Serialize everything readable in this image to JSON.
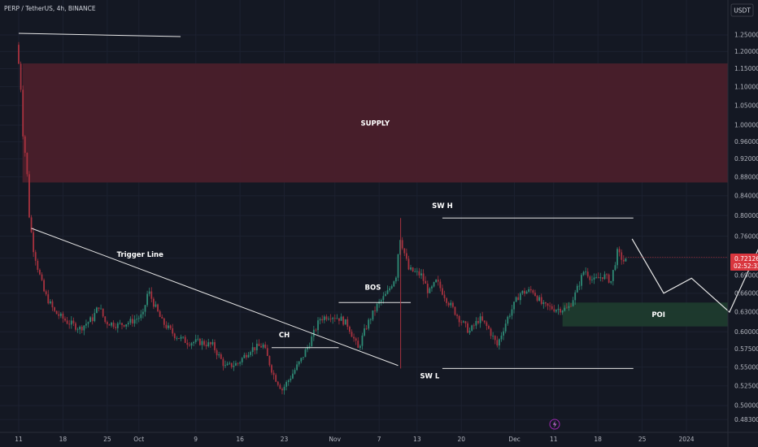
{
  "header": {
    "title": "PERP / TetherUS, 4h, BINANCE",
    "currency": "USDT"
  },
  "price_badge": {
    "price": "0.72126",
    "countdown": "02:52:32"
  },
  "colors": {
    "background": "#141823",
    "bull": "#2e8a75",
    "bear": "#a8323f",
    "supply_zone": "#4a1f2b",
    "poi_zone": "#1e3b2e",
    "line": "#e6e6e6",
    "badge": "#d9363e"
  },
  "chart_data": {
    "type": "candlestick",
    "y_scale": "log",
    "ylim": [
      0.47,
      1.33
    ],
    "y_ticks": [
      "1.25000",
      "1.20000",
      "1.15000",
      "1.10000",
      "1.05000",
      "1.00000",
      "0.96000",
      "0.92000",
      "0.88000",
      "0.84000",
      "0.80000",
      "0.76000",
      "0.72000",
      "0.69000",
      "0.66000",
      "0.63000",
      "0.60000",
      "0.57500",
      "0.55000",
      "0.52500",
      "0.50000",
      "0.48300"
    ],
    "x_ticks": [
      "11",
      "18",
      "25",
      "Oct",
      "9",
      "16",
      "23",
      "Nov",
      "7",
      "13",
      "20",
      "Dec",
      "11",
      "18",
      "25",
      "2024"
    ],
    "price_path": [
      [
        0.0,
        1.22
      ],
      [
        0.3,
        1.12
      ],
      [
        0.5,
        0.98
      ],
      [
        0.8,
        0.9
      ],
      [
        1.0,
        0.8
      ],
      [
        1.3,
        0.74
      ],
      [
        1.7,
        0.7
      ],
      [
        2.2,
        0.66
      ],
      [
        3.0,
        0.63
      ],
      [
        4.0,
        0.615
      ],
      [
        5.0,
        0.605
      ],
      [
        6.0,
        0.62
      ],
      [
        6.5,
        0.64
      ],
      [
        7.0,
        0.615
      ],
      [
        8.0,
        0.61
      ],
      [
        9.0,
        0.615
      ],
      [
        10.0,
        0.625
      ],
      [
        10.4,
        0.665
      ],
      [
        10.8,
        0.645
      ],
      [
        11.5,
        0.615
      ],
      [
        12.5,
        0.595
      ],
      [
        13.5,
        0.585
      ],
      [
        14.5,
        0.585
      ],
      [
        15.5,
        0.58
      ],
      [
        16.5,
        0.55
      ],
      [
        17.5,
        0.555
      ],
      [
        18.5,
        0.575
      ],
      [
        19.5,
        0.58
      ],
      [
        20.3,
        0.54
      ],
      [
        21.0,
        0.52
      ],
      [
        21.6,
        0.535
      ],
      [
        22.5,
        0.56
      ],
      [
        23.2,
        0.585
      ],
      [
        24.0,
        0.62
      ],
      [
        24.8,
        0.625
      ],
      [
        25.6,
        0.62
      ],
      [
        26.2,
        0.61
      ],
      [
        27.0,
        0.575
      ],
      [
        27.7,
        0.61
      ],
      [
        28.5,
        0.64
      ],
      [
        29.3,
        0.66
      ],
      [
        30.0,
        0.69
      ],
      [
        30.3,
        0.76
      ],
      [
        31.0,
        0.7
      ],
      [
        32.0,
        0.69
      ],
      [
        32.6,
        0.66
      ],
      [
        33.2,
        0.68
      ],
      [
        34.0,
        0.65
      ],
      [
        35.0,
        0.62
      ],
      [
        35.8,
        0.6
      ],
      [
        36.6,
        0.62
      ],
      [
        37.3,
        0.605
      ],
      [
        38.0,
        0.58
      ],
      [
        38.8,
        0.62
      ],
      [
        39.8,
        0.66
      ],
      [
        40.8,
        0.665
      ],
      [
        41.6,
        0.64
      ],
      [
        42.6,
        0.635
      ],
      [
        43.6,
        0.635
      ],
      [
        44.2,
        0.66
      ],
      [
        44.9,
        0.7
      ],
      [
        45.6,
        0.68
      ],
      [
        46.4,
        0.69
      ],
      [
        47.0,
        0.68
      ],
      [
        47.5,
        0.73
      ],
      [
        48.0,
        0.715
      ]
    ],
    "projection": [
      [
        48.5,
        0.755
      ],
      [
        51.0,
        0.66
      ],
      [
        53.2,
        0.685
      ],
      [
        56.2,
        0.63
      ],
      [
        62.0,
        0.935
      ]
    ],
    "zones": [
      {
        "label": "SUPPLY",
        "y_top": 1.165,
        "y_bottom": 0.868,
        "x_from": 0.3,
        "x_to": 65.5
      },
      {
        "label": "POI",
        "y_top": 0.645,
        "y_bottom": 0.608,
        "x_from": 43.0,
        "x_to": 65.5
      }
    ],
    "annotations": [
      {
        "label": "Trigger Line",
        "kind": "line",
        "from": [
          1.0,
          0.775
        ],
        "to": [
          30.0,
          0.552
        ],
        "text_at": [
          9.6,
          0.722
        ]
      },
      {
        "label": "BOS",
        "kind": "level",
        "x1": 25.3,
        "x2": 31.0,
        "y": 0.645,
        "text_at": [
          28.0,
          0.666
        ]
      },
      {
        "label": "CH",
        "kind": "level",
        "x1": 20.0,
        "x2": 25.3,
        "y": 0.577,
        "text_at": [
          21.0,
          0.592
        ]
      },
      {
        "label": "SW H",
        "kind": "level",
        "x1": 33.5,
        "x2": 48.6,
        "y": 0.795,
        "text_at": [
          33.5,
          0.815
        ]
      },
      {
        "label": "SW L",
        "kind": "level",
        "x1": 33.5,
        "x2": 48.6,
        "y": 0.548,
        "text_at": [
          32.5,
          0.535
        ]
      },
      {
        "label": "",
        "kind": "line",
        "from": [
          0.0,
          1.255
        ],
        "to": [
          12.8,
          1.245
        ]
      }
    ]
  }
}
